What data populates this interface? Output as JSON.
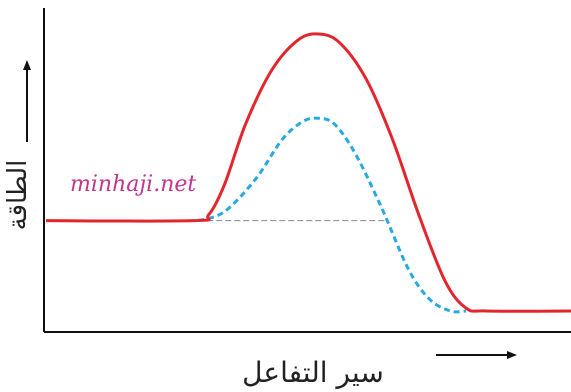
{
  "chart_data": {
    "type": "line",
    "xlabel": "سير التفاعل",
    "ylabel": "الطاقة",
    "grid": false,
    "legend": "none",
    "reactant_energy": 0.38,
    "product_energy": 0.08,
    "peak_uncatalyzed": 1.0,
    "peak_catalyzed": 0.72,
    "series": [
      {
        "color": "#e3262d",
        "style": "solid",
        "points": [
          [
            0.0,
            0.38
          ],
          [
            0.28,
            0.38
          ],
          [
            0.31,
            0.4
          ],
          [
            0.34,
            0.5
          ],
          [
            0.38,
            0.7
          ],
          [
            0.43,
            0.88
          ],
          [
            0.48,
            0.98
          ],
          [
            0.52,
            1.0
          ],
          [
            0.56,
            0.97
          ],
          [
            0.61,
            0.85
          ],
          [
            0.66,
            0.65
          ],
          [
            0.71,
            0.4
          ],
          [
            0.76,
            0.18
          ],
          [
            0.8,
            0.09
          ],
          [
            0.84,
            0.08
          ],
          [
            1.0,
            0.08
          ]
        ]
      },
      {
        "color": "#29a9e1",
        "style": "dashed",
        "points": [
          [
            0.29,
            0.38
          ],
          [
            0.34,
            0.41
          ],
          [
            0.4,
            0.52
          ],
          [
            0.45,
            0.65
          ],
          [
            0.49,
            0.71
          ],
          [
            0.52,
            0.72
          ],
          [
            0.55,
            0.7
          ],
          [
            0.59,
            0.6
          ],
          [
            0.64,
            0.42
          ],
          [
            0.69,
            0.22
          ],
          [
            0.73,
            0.12
          ],
          [
            0.77,
            0.08
          ],
          [
            0.8,
            0.08
          ]
        ]
      },
      {
        "color": "#888888",
        "style": "thin-dashed",
        "points": [
          [
            0.29,
            0.38
          ],
          [
            0.65,
            0.38
          ]
        ]
      }
    ]
  },
  "watermark": "minhaji.net",
  "colors": {
    "axis": "#111111",
    "uncatalyzed": "#e3262d",
    "catalyzed": "#29a9e1",
    "baseline": "#888888",
    "watermark": "#c2358f"
  }
}
